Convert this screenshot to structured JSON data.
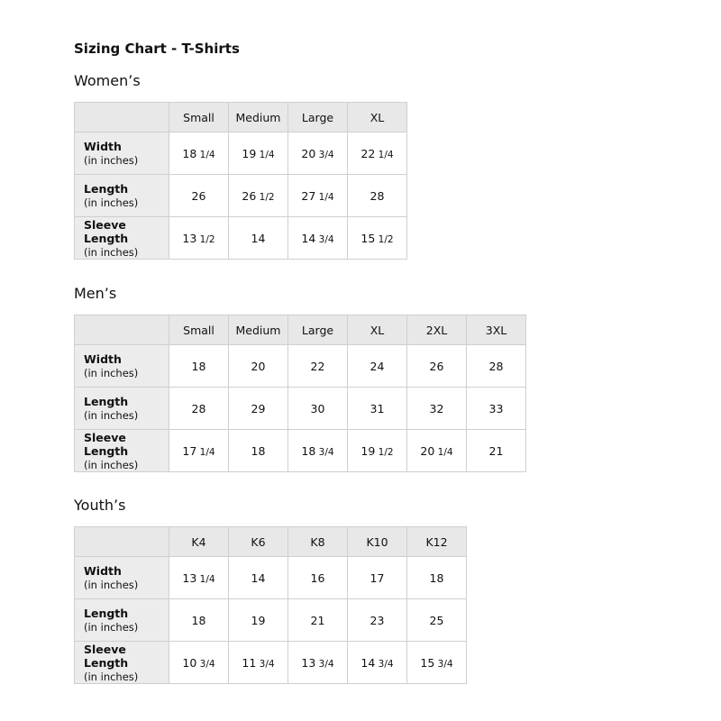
{
  "title": "Sizing Chart - T-Shirts",
  "unit_label": "(in inches)",
  "sections": [
    {
      "heading": "Women’s",
      "sizes": [
        "Small",
        "Medium",
        "Large",
        "XL"
      ],
      "rows": [
        {
          "label": "Width",
          "values": [
            "18 1/4",
            "19 1/4",
            "20 3/4",
            "22 1/4"
          ]
        },
        {
          "label": "Length",
          "values": [
            "26",
            "26 1/2",
            "27 1/4",
            "28"
          ]
        },
        {
          "label": "Sleeve Length",
          "values": [
            "13 1/2",
            "14",
            "14 3/4",
            "15 1/2"
          ]
        }
      ]
    },
    {
      "heading": "Men’s",
      "sizes": [
        "Small",
        "Medium",
        "Large",
        "XL",
        "2XL",
        "3XL"
      ],
      "rows": [
        {
          "label": "Width",
          "values": [
            "18",
            "20",
            "22",
            "24",
            "26",
            "28"
          ]
        },
        {
          "label": "Length",
          "values": [
            "28",
            "29",
            "30",
            "31",
            "32",
            "33"
          ]
        },
        {
          "label": "Sleeve Length",
          "values": [
            "17 1/4",
            "18",
            "18 3/4",
            "19 1/2",
            "20 1/4",
            "21"
          ]
        }
      ]
    },
    {
      "heading": "Youth’s",
      "sizes": [
        "K4",
        "K6",
        "K8",
        "K10",
        "K12"
      ],
      "rows": [
        {
          "label": "Width",
          "values": [
            "13 1/4",
            "14",
            "16",
            "17",
            "18"
          ]
        },
        {
          "label": "Length",
          "values": [
            "18",
            "19",
            "21",
            "23",
            "25"
          ]
        },
        {
          "label": "Sleeve Length",
          "values": [
            "10 3/4",
            "11 3/4",
            "13 3/4",
            "14 3/4",
            "15 3/4"
          ]
        }
      ]
    }
  ]
}
